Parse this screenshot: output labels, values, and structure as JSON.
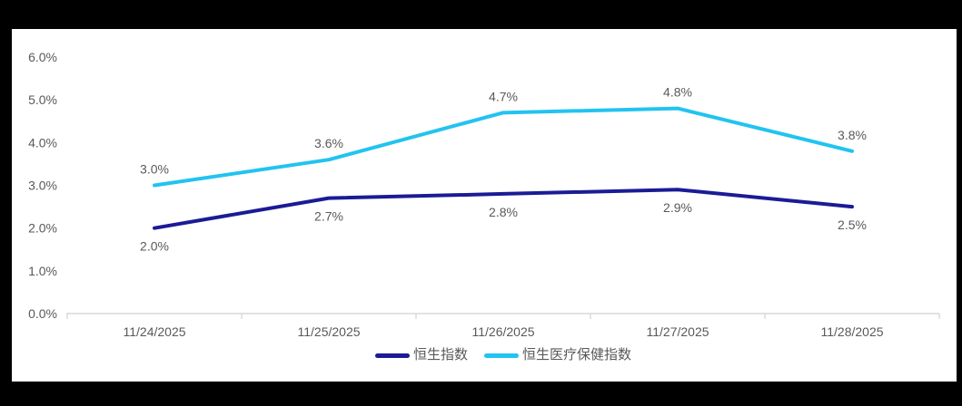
{
  "frame": {
    "background_color": "#000000",
    "card_background_color": "#ffffff"
  },
  "chart_data": {
    "type": "line",
    "title": "",
    "x": [
      "11/24/2025",
      "11/25/2025",
      "11/26/2025",
      "11/27/2025",
      "11/28/2025"
    ],
    "series": [
      {
        "name": "恒生指数",
        "color": "#1B1B96",
        "values": [
          2.0,
          2.7,
          2.8,
          2.9,
          2.5
        ],
        "data_labels": [
          "2.0%",
          "2.7%",
          "2.8%",
          "2.9%",
          "2.5%"
        ],
        "label_position": "below"
      },
      {
        "name": "恒生医疗保健指数",
        "color": "#22C3F0",
        "values": [
          3.0,
          3.6,
          4.7,
          4.8,
          3.8
        ],
        "data_labels": [
          "3.0%",
          "3.6%",
          "4.7%",
          "4.8%",
          "3.8%"
        ],
        "label_position": "above"
      }
    ],
    "y_axis": {
      "min": 0,
      "max": 6,
      "step": 1,
      "tick_labels": [
        "0.0%",
        "1.0%",
        "2.0%",
        "3.0%",
        "4.0%",
        "5.0%",
        "6.0%"
      ]
    },
    "grid": false,
    "legend_position": "bottom",
    "axis_color": "#D9D9D9",
    "label_color": "#595959",
    "line_width": 4
  }
}
